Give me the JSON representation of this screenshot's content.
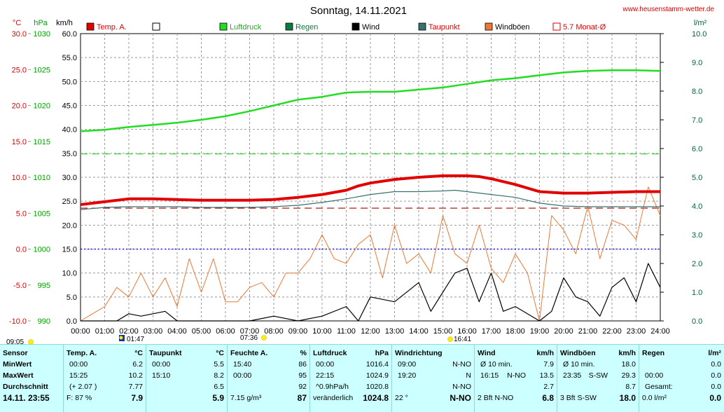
{
  "chart_data": {
    "type": "line",
    "title": "Sonntag, 14.11.2021",
    "watermark": "www.heusenstamm-wetter.de",
    "axes": {
      "temp": {
        "label": "°C",
        "color": "#e00000",
        "range": [
          -10,
          30
        ],
        "ticks": [
          "30.0",
          "25.0",
          "20.0",
          "15.0",
          "10.0",
          "5.0",
          "0.0",
          "-5.0",
          "-10.0"
        ]
      },
      "press": {
        "label": "hPa",
        "color": "#00a000",
        "range": [
          990,
          1030
        ],
        "ticks": [
          "1030",
          "1025",
          "1020",
          "1015",
          "1010",
          "1005",
          "1000",
          "995",
          "990"
        ]
      },
      "wind": {
        "label": "km/h",
        "color": "#000000",
        "range": [
          0,
          60
        ],
        "ticks": [
          "60.0",
          "55.0",
          "50.0",
          "45.0",
          "40.0",
          "35.0",
          "30.0",
          "25.0",
          "20.0",
          "15.0",
          "10.0",
          "5.0",
          "0.0"
        ]
      },
      "rain": {
        "label": "l/m²",
        "color": "#006633",
        "range": [
          0,
          10
        ],
        "ticks": [
          "10.0",
          "9.0",
          "8.0",
          "7.0",
          "6.0",
          "5.0",
          "4.0",
          "3.0",
          "2.0",
          "1.0",
          "0.0"
        ]
      }
    },
    "x_ticks": [
      "00:00",
      "01:00",
      "02:00",
      "03:00",
      "04:00",
      "05:00",
      "06:00",
      "07:00",
      "08:00",
      "09:00",
      "10:00",
      "11:00",
      "12:00",
      "13:00",
      "14:00",
      "15:00",
      "16:00",
      "17:00",
      "18:00",
      "19:00",
      "20:00",
      "21:00",
      "22:00",
      "23:00",
      "24:00"
    ],
    "legend": [
      {
        "label": "Temp. A.",
        "color": "#e00000",
        "text_color": "#e00000",
        "style": "filled"
      },
      {
        "label": "",
        "color": "#ffffff",
        "text_color": "#000000",
        "style": "outline"
      },
      {
        "label": "Luftdruck",
        "color": "#22dd22",
        "text_color": "#22aa22",
        "style": "filled"
      },
      {
        "label": "Regen",
        "color": "#0a7a3e",
        "text_color": "#0a7a3e",
        "style": "filled"
      },
      {
        "label": "Wind",
        "color": "#000000",
        "text_color": "#000000",
        "style": "filled"
      },
      {
        "label": "Taupunkt",
        "color": "#3a7070",
        "text_color": "#e00000",
        "style": "filled"
      },
      {
        "label": "Windböen",
        "color": "#ee7733",
        "text_color": "#000000",
        "style": "filled"
      },
      {
        "label": "5.7 Monat-Ø",
        "color": "#e00000",
        "text_color": "#e00000",
        "style": "outline"
      }
    ],
    "series": {
      "temperature_C": {
        "x_hours": [
          0,
          1,
          2,
          3,
          4,
          5,
          6,
          7,
          8,
          9,
          10,
          11,
          11.5,
          12,
          13,
          14,
          15,
          15.5,
          16,
          16.5,
          17,
          18,
          19,
          20,
          21,
          22,
          23,
          24
        ],
        "values": [
          6.2,
          6.6,
          7.0,
          7.0,
          6.9,
          6.8,
          6.8,
          6.8,
          6.9,
          7.2,
          7.6,
          8.2,
          8.8,
          9.2,
          9.7,
          10.0,
          10.2,
          10.2,
          10.2,
          10.1,
          9.8,
          9.0,
          8.0,
          7.8,
          7.8,
          7.9,
          8.0,
          8.0
        ]
      },
      "dewpoint_C": {
        "x_hours": [
          0,
          1,
          2,
          3,
          4,
          5,
          6,
          7,
          8,
          9,
          10,
          11,
          12,
          13,
          14,
          15,
          15.5,
          16,
          17,
          18,
          19,
          20,
          21,
          22,
          23,
          24
        ],
        "values": [
          5.5,
          5.8,
          5.9,
          5.9,
          5.9,
          5.8,
          5.8,
          5.8,
          5.9,
          6.1,
          6.5,
          7.0,
          7.6,
          8.0,
          8.0,
          8.1,
          8.2,
          8.0,
          7.6,
          7.2,
          6.4,
          6.0,
          5.9,
          5.9,
          5.9,
          5.9
        ]
      },
      "pressure_hPa": {
        "x_hours": [
          0,
          1,
          2,
          3,
          4,
          5,
          6,
          7,
          8,
          9,
          10,
          11,
          12,
          13,
          14,
          15,
          16,
          17,
          18,
          19,
          20,
          21,
          22,
          23,
          24
        ],
        "values": [
          1016.4,
          1016.6,
          1017.0,
          1017.3,
          1017.6,
          1018.0,
          1018.5,
          1019.2,
          1020.0,
          1020.8,
          1021.2,
          1021.8,
          1021.9,
          1021.9,
          1022.2,
          1022.5,
          1023.0,
          1023.5,
          1023.8,
          1024.2,
          1024.6,
          1024.8,
          1024.9,
          1024.9,
          1024.8
        ]
      },
      "wind_kmh": {
        "x_hours": [
          0,
          1.5,
          2,
          2.5,
          3,
          3.5,
          4,
          5,
          6,
          7,
          8,
          9,
          10,
          11,
          11.5,
          12,
          13,
          14,
          14.5,
          15,
          15.5,
          16,
          16.5,
          17,
          17.5,
          18,
          19,
          19.5,
          20,
          20.5,
          21,
          21.5,
          22,
          22.5,
          23,
          23.5,
          24
        ],
        "values": [
          0,
          0,
          1.5,
          1,
          1.5,
          2,
          0,
          0,
          0,
          0,
          1,
          0,
          1,
          3,
          0,
          5,
          4,
          8,
          2,
          6,
          10,
          11,
          4,
          10,
          2,
          3,
          0,
          2,
          9,
          5,
          4,
          1,
          7,
          9,
          4,
          12,
          7
        ]
      },
      "gusts_kmh": {
        "x_hours": [
          0,
          1,
          1.5,
          2,
          2.5,
          3,
          3.5,
          4,
          4.5,
          5,
          5.5,
          6,
          6.5,
          7,
          7.5,
          8,
          8.5,
          9,
          9.5,
          10,
          10.5,
          11,
          11.5,
          12,
          12.5,
          13,
          13.5,
          14,
          14.5,
          15,
          15.5,
          16,
          16.5,
          17,
          17.5,
          18,
          18.5,
          19,
          19.5,
          20,
          20.5,
          21,
          21.5,
          22,
          22.5,
          23,
          23.5,
          24
        ],
        "values": [
          0,
          3,
          7,
          5,
          10,
          5,
          9,
          3,
          13,
          6,
          13,
          4,
          4,
          7,
          8,
          5,
          10,
          10,
          13,
          18,
          13,
          12,
          16,
          18,
          9,
          20,
          12,
          14,
          10,
          22,
          14,
          12,
          20,
          11,
          8,
          14,
          10,
          0,
          22,
          19,
          14,
          24,
          13,
          21,
          20,
          17,
          28,
          22
        ]
      },
      "rain_lm2": {
        "x_hours": [
          0,
          24
        ],
        "values": [
          0,
          0
        ]
      },
      "temp_month_avg_C": {
        "value": 5.7
      }
    },
    "reference_lines": {
      "pressure_hPa": 1013.25,
      "temperature_C": 0.0
    },
    "markers": [
      {
        "time": "09:05",
        "icon": "sunrise"
      },
      {
        "time": "01:47",
        "icon": "moonset"
      },
      {
        "time": "07:36",
        "icon": "sunrise"
      },
      {
        "time": "16:41",
        "icon": "sunset"
      }
    ]
  },
  "stats": {
    "sensor": {
      "title": "Sensor",
      "rows": [
        "MinWert",
        "MaxWert",
        "Durchschnitt",
        "14.11. 23:55"
      ]
    },
    "temp": {
      "title": "Temp. A.",
      "unit": "°C",
      "rows": [
        [
          "00:00",
          "6.2"
        ],
        [
          "15:25",
          "10.2"
        ],
        [
          "(+ 2.07 )",
          "7.77"
        ],
        [
          "F: 87 %",
          "7.9"
        ]
      ]
    },
    "dew": {
      "title": "Taupunkt",
      "unit": "°C",
      "rows": [
        [
          "00:00",
          "5.5"
        ],
        [
          "15:10",
          "8.2"
        ],
        [
          "",
          "6.5"
        ],
        [
          "",
          "5.9"
        ]
      ]
    },
    "humid": {
      "title": "Feuchte A.",
      "unit": "%",
      "rows": [
        [
          "15:40",
          "86"
        ],
        [
          "00:00",
          "95"
        ],
        [
          "",
          "92"
        ],
        [
          "7.15 g/m³",
          "87"
        ]
      ]
    },
    "press": {
      "title": "Luftdruck",
      "unit": "hPa",
      "rows": [
        [
          "00:00",
          "1016.4"
        ],
        [
          "22:15",
          "1024.9"
        ],
        [
          "^0.9hPa/h",
          "1020.8"
        ],
        [
          "veränderlich",
          "1024.8"
        ]
      ]
    },
    "wdir": {
      "title": "Windrichtung",
      "unit": "",
      "rows": [
        [
          "09:00",
          "N-NO"
        ],
        [
          "19:20",
          "N"
        ],
        [
          "",
          "N-NO"
        ],
        [
          "22 °",
          "N-NO"
        ]
      ]
    },
    "wind": {
      "title": "Wind",
      "unit": "km/h",
      "rows": [
        [
          "Ø 10 min.",
          "",
          "7.9"
        ],
        [
          "16:15",
          "N-NO",
          "13.5"
        ],
        [
          "",
          "",
          "2.7"
        ],
        [
          "2 Bft N-NO",
          "",
          "6.8"
        ]
      ]
    },
    "gust": {
      "title": "Windböen",
      "unit": "km/h",
      "rows": [
        [
          "Ø 10 min.",
          "",
          "18.0"
        ],
        [
          "23:35",
          "S-SW",
          "29.3"
        ],
        [
          "",
          "",
          "8.7"
        ],
        [
          "3 Bft S-SW",
          "",
          "18.0"
        ]
      ]
    },
    "rain": {
      "title": "Regen",
      "unit": "l/m²",
      "rows": [
        [
          "",
          "0.0"
        ],
        [
          "00:00",
          "0.0"
        ],
        [
          "Gesamt:",
          "0.0"
        ],
        [
          "0.0 l/m²",
          "0.0"
        ]
      ]
    }
  }
}
